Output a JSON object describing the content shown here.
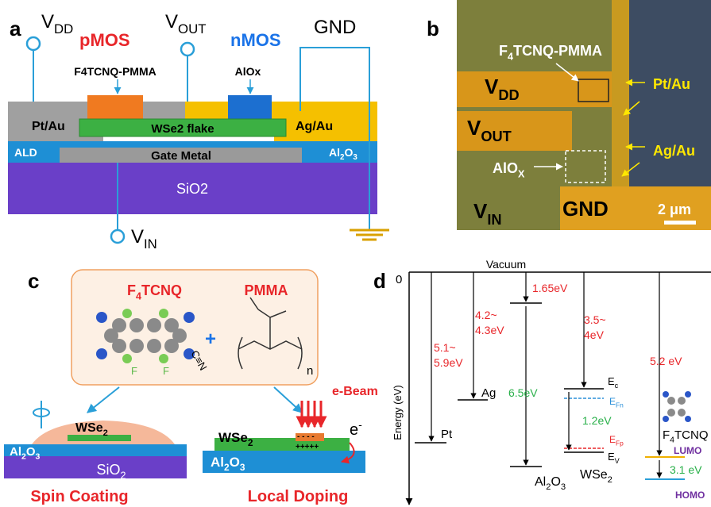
{
  "panel_a": {
    "label": "a",
    "vdd": [
      {
        "text": "V"
      },
      {
        "text": "DD",
        "pos": "sub"
      }
    ],
    "pmos": "pMOS",
    "vout": [
      {
        "text": "V"
      },
      {
        "text": "OUT",
        "pos": "sub"
      }
    ],
    "nmos": "nMOS",
    "gnd": "GND",
    "f4tcnq_pmma": "F4TCNQ-PMMA",
    "alox": "AlOx",
    "pt_au": "Pt/Au",
    "wse2_flake": "WSe2 flake",
    "ag_au": "Ag/Au",
    "ald": "ALD",
    "al2o3": [
      {
        "text": "Al"
      },
      {
        "text": "2",
        "pos": "sub"
      },
      {
        "text": "O"
      },
      {
        "text": "3",
        "pos": "sub"
      }
    ],
    "gate_metal": "Gate Metal",
    "sio2": "SiO2",
    "vin": [
      {
        "text": "V"
      },
      {
        "text": "IN",
        "pos": "sub"
      }
    ]
  },
  "panel_b": {
    "label": "b",
    "f4tcnq_pmma": [
      {
        "text": "F"
      },
      {
        "text": "4",
        "pos": "sub"
      },
      {
        "text": "TCNQ-PMMA"
      }
    ],
    "vdd": [
      {
        "text": "V"
      },
      {
        "text": "DD",
        "pos": "sub"
      }
    ],
    "vout": [
      {
        "text": "V"
      },
      {
        "text": "OUT",
        "pos": "sub"
      }
    ],
    "alox": [
      {
        "text": "AlO"
      },
      {
        "text": "X",
        "pos": "sub"
      }
    ],
    "vin": [
      {
        "text": "V"
      },
      {
        "text": "IN",
        "pos": "sub"
      }
    ],
    "gnd": "GND",
    "pt_au": "Pt/Au",
    "ag_au": "Ag/Au",
    "scale": "2 μm"
  },
  "panel_c": {
    "label": "c",
    "f4tcnq": [
      {
        "text": "F"
      },
      {
        "text": "4",
        "pos": "sub"
      },
      {
        "text": "TCNQ"
      }
    ],
    "pmma": "PMMA",
    "cn": "C≡N",
    "f_left": "F",
    "f_right": "F",
    "plus": "+",
    "n": "n",
    "wse2_left": [
      {
        "text": "WSe"
      },
      {
        "text": "2",
        "pos": "sub"
      }
    ],
    "al2o3_left": [
      {
        "text": "Al"
      },
      {
        "text": "2",
        "pos": "sub"
      },
      {
        "text": "O"
      },
      {
        "text": "3",
        "pos": "sub"
      }
    ],
    "sio2": [
      {
        "text": "SiO"
      },
      {
        "text": "2",
        "pos": "sub"
      }
    ],
    "spin_coating": "Spin Coating",
    "ebeam": "e-Beam",
    "wse2_right": [
      {
        "text": "WSe"
      },
      {
        "text": "2",
        "pos": "sub"
      }
    ],
    "al2o3_right": [
      {
        "text": "Al"
      },
      {
        "text": "2",
        "pos": "sub"
      },
      {
        "text": "O"
      },
      {
        "text": "3",
        "pos": "sub"
      }
    ],
    "electron": [
      {
        "text": "e"
      },
      {
        "text": "-",
        "pos": "sup"
      }
    ],
    "minus": "- - - -",
    "plus_charges": "+++++",
    "local_doping": "Local Doping"
  },
  "panel_d": {
    "label": "d",
    "vacuum": "Vacuum",
    "zero": "0",
    "y_label": "Energy (eV)",
    "pt_wf": [
      "5.1~",
      "5.9eV"
    ],
    "ag_wf": [
      "4.2~",
      "4.3eV"
    ],
    "al2o3_ea": "1.65eV",
    "al2o3_gap": "6.5eV",
    "wse2_ea": [
      "3.5~",
      "4eV"
    ],
    "wse2_gap": "1.2eV",
    "f4_ea": "5.2 eV",
    "f4_gap": "3.1 eV",
    "pt": "Pt",
    "ag": "Ag",
    "al2o3": [
      {
        "text": "Al"
      },
      {
        "text": "2",
        "pos": "sub"
      },
      {
        "text": "O"
      },
      {
        "text": "3",
        "pos": "sub"
      }
    ],
    "wse2": [
      {
        "text": "WSe"
      },
      {
        "text": "2",
        "pos": "sub"
      }
    ],
    "ec": [
      {
        "text": "E"
      },
      {
        "text": "c",
        "pos": "sub"
      }
    ],
    "efn": [
      {
        "text": "E"
      },
      {
        "text": "Fn",
        "pos": "sub"
      }
    ],
    "efp": [
      {
        "text": "E"
      },
      {
        "text": "Fp",
        "pos": "sub"
      }
    ],
    "ev": [
      {
        "text": "E"
      },
      {
        "text": "V",
        "pos": "sub"
      }
    ],
    "f4tcnq": [
      {
        "text": "F"
      },
      {
        "text": "4",
        "pos": "sub"
      },
      {
        "text": "TCNQ"
      }
    ],
    "lumo": "LUMO",
    "homo": "HOMO"
  }
}
